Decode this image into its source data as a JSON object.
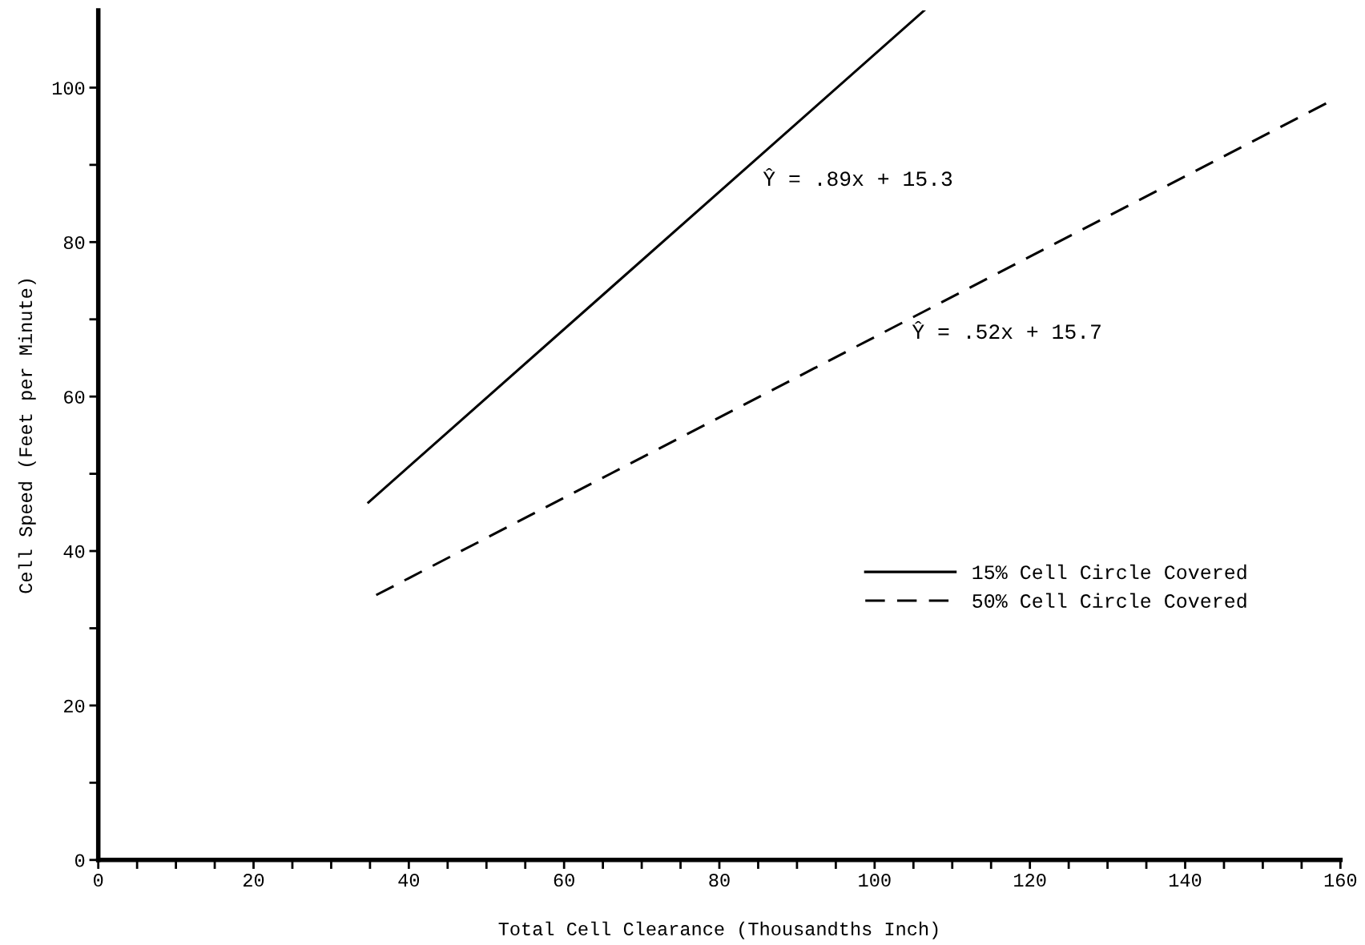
{
  "chart_data": {
    "type": "line",
    "xlabel": "Total Cell Clearance (Thousandths Inch)",
    "ylabel": "Cell Speed (Feet per Minute)",
    "xlim": [
      0,
      160
    ],
    "ylim": [
      0,
      110
    ],
    "xticks": [
      0,
      {
        "value": 5,
        "label": null
      },
      20,
      {
        "value": 10,
        "label": null
      },
      {
        "value": 15,
        "label": null
      },
      {
        "value": 25,
        "label": null
      },
      {
        "value": 30,
        "label": null
      },
      {
        "value": 35,
        "label": null
      },
      40,
      {
        "value": 45,
        "label": null
      },
      {
        "value": 50,
        "label": null
      },
      {
        "value": 55,
        "label": null
      },
      60,
      {
        "value": 65,
        "label": null
      },
      {
        "value": 70,
        "label": null
      },
      {
        "value": 75,
        "label": null
      },
      80,
      {
        "value": 85,
        "label": null
      },
      {
        "value": 90,
        "label": null
      },
      {
        "value": 95,
        "label": null
      },
      100,
      {
        "value": 105,
        "label": null
      },
      {
        "value": 110,
        "label": null
      },
      {
        "value": 115,
        "label": null
      },
      120,
      {
        "value": 125,
        "label": null
      },
      {
        "value": 130,
        "label": null
      },
      {
        "value": 135,
        "label": null
      },
      140,
      {
        "value": 145,
        "label": null
      },
      {
        "value": 150,
        "label": null
      },
      {
        "value": 155,
        "label": null
      },
      160
    ],
    "yticks": [
      0,
      {
        "value": 10,
        "label": null
      },
      20,
      {
        "value": 30,
        "label": null
      },
      40,
      {
        "value": 50,
        "label": null
      },
      60,
      {
        "value": 70,
        "label": null
      },
      80,
      {
        "value": 90,
        "label": null
      },
      100
    ],
    "grid": false,
    "legend": "right",
    "series": [
      {
        "name": "15% Cell Circle Covered",
        "color": "#000000",
        "line_style": "solid",
        "x": [
          34.8,
          106.4
        ],
        "values": [
          46.3,
          110
        ]
      },
      {
        "name": "50% Cell Circle Covered",
        "color": "#000000",
        "line_style": "dashed",
        "x": [
          35.8,
          158.6
        ],
        "values": [
          34.3,
          98.2
        ]
      }
    ],
    "annotations": [
      "Ŷ = .89x + 15.3",
      "Ŷ = .52x + 15.7"
    ]
  }
}
